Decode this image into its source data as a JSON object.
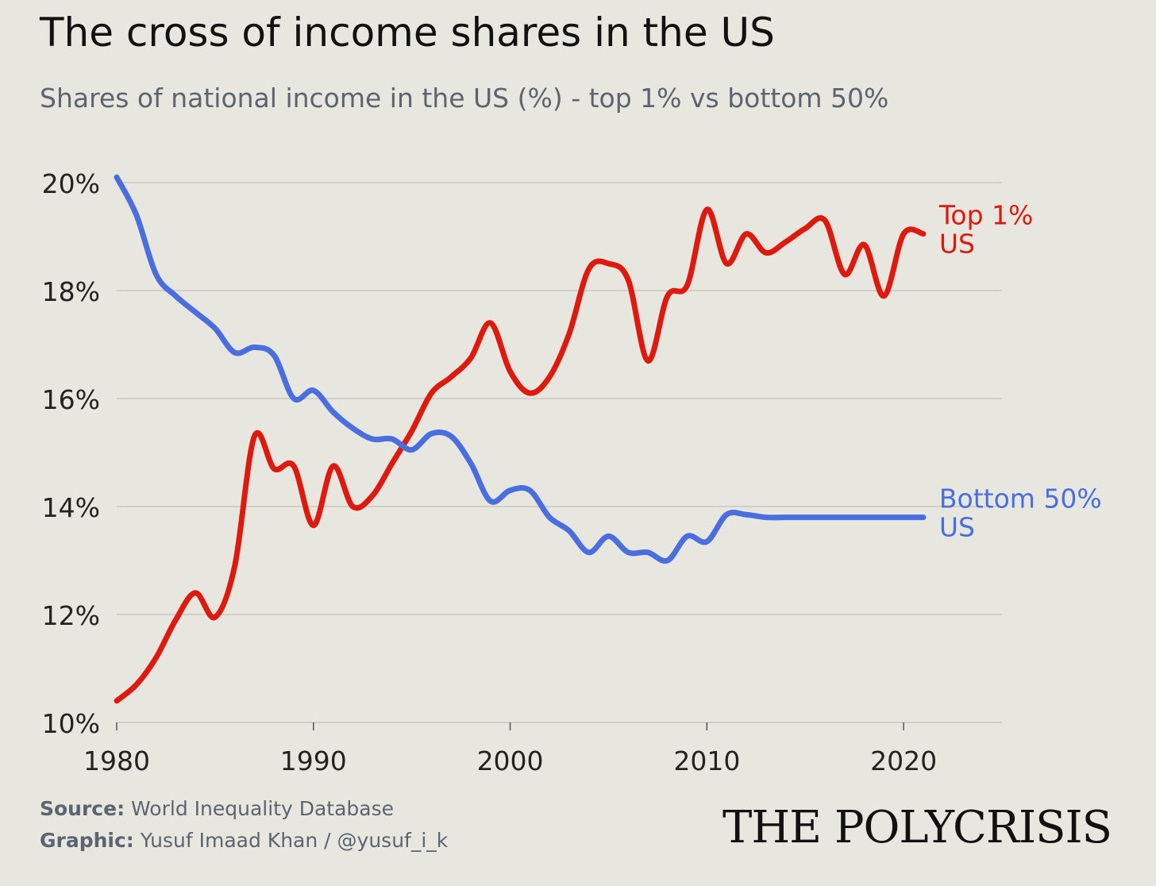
{
  "title": "The cross of income shares in the US",
  "subtitle": "Shares of national income in the US (%) - top 1% vs bottom 50%",
  "footer": {
    "source_label": "Source:",
    "source_text": "World Inequality Database",
    "graphic_label": "Graphic:",
    "graphic_text": "Yusuf Imaad Khan / @yusuf_i_k"
  },
  "brand": "THE POLYCRISIS",
  "colors": {
    "top1": "#e0190f",
    "bottom50": "#4a6de0",
    "grid": "#c9c9c1",
    "axis_text": "#222222",
    "background": "#e7e7e0"
  },
  "chart_data": {
    "type": "line",
    "x": [
      1980,
      1981,
      1982,
      1983,
      1984,
      1985,
      1986,
      1987,
      1988,
      1989,
      1990,
      1991,
      1992,
      1993,
      1994,
      1995,
      1996,
      1997,
      1998,
      1999,
      2000,
      2001,
      2002,
      2003,
      2004,
      2005,
      2006,
      2007,
      2008,
      2009,
      2010,
      2011,
      2012,
      2013,
      2014,
      2015,
      2016,
      2017,
      2018,
      2019,
      2020,
      2021
    ],
    "series": [
      {
        "name": "Top 1% US",
        "label_lines": [
          "Top 1%",
          "US"
        ],
        "color": "#e0190f",
        "values": [
          10.4,
          10.7,
          11.2,
          11.9,
          12.4,
          11.95,
          12.9,
          15.3,
          14.7,
          14.75,
          13.65,
          14.75,
          14.0,
          14.2,
          14.8,
          15.4,
          16.1,
          16.4,
          16.75,
          17.4,
          16.5,
          16.1,
          16.4,
          17.2,
          18.4,
          18.5,
          18.2,
          16.7,
          17.9,
          18.1,
          19.5,
          18.5,
          19.05,
          18.7,
          18.9,
          19.15,
          19.3,
          18.3,
          18.85,
          17.9,
          19.05,
          19.05
        ],
        "values_note": ""
      },
      {
        "name": "Bottom 50% US",
        "label_lines": [
          "Bottom 50%",
          "US"
        ],
        "color": "#4a6de0",
        "values": [
          20.1,
          19.4,
          18.3,
          17.9,
          17.6,
          17.3,
          16.85,
          16.95,
          16.8,
          16.0,
          16.15,
          15.75,
          15.45,
          15.25,
          15.25,
          15.05,
          15.35,
          15.3,
          14.8,
          14.1,
          14.3,
          14.3,
          13.8,
          13.55,
          13.15,
          13.45,
          13.15,
          13.15,
          13.0,
          13.45,
          13.35,
          13.85,
          13.85,
          13.8,
          13.8,
          13.8,
          13.8,
          13.8,
          13.8,
          13.8,
          13.8,
          13.8
        ],
        "values_note": ""
      }
    ],
    "xlim": [
      1980,
      2025
    ],
    "ylim": [
      10,
      20
    ],
    "xticks": [
      "1980",
      "1990",
      "2000",
      "2010",
      "2020"
    ],
    "yticks": [
      "10%",
      "12%",
      "14%",
      "16%",
      "18%",
      "20%"
    ],
    "grid": true,
    "legend": "inline-right"
  }
}
